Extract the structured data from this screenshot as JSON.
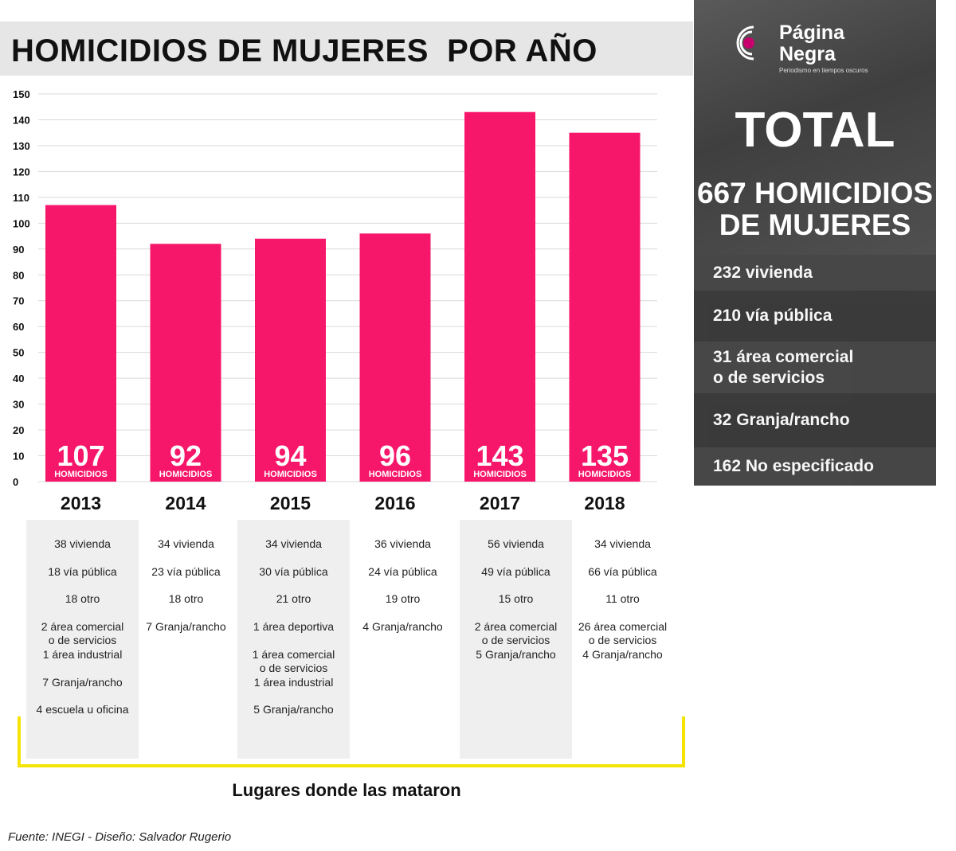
{
  "title": "HOMICIDIOS DE MUJERES  POR AÑO",
  "colors": {
    "bar": "#f7176a",
    "grid": "#d9d9d9",
    "panel": "#474747",
    "bracket": "#f5e400",
    "logo_accent": "#c8006e"
  },
  "chart_data": {
    "type": "bar",
    "categories": [
      "2013",
      "2014",
      "2015",
      "2016",
      "2017",
      "2018"
    ],
    "values": [
      107,
      92,
      94,
      96,
      143,
      135
    ],
    "value_label_suffix": "HOMICIDIOS",
    "yticks": [
      0,
      10,
      20,
      30,
      40,
      50,
      60,
      70,
      80,
      90,
      100,
      110,
      120,
      130,
      140,
      150
    ],
    "ylim": [
      0,
      150
    ],
    "grid": true
  },
  "locations": [
    {
      "year": "2013",
      "items": [
        "38 vivienda",
        "18 vía pública",
        "18 otro",
        "2 área comercial\no de servicios",
        "1 área industrial",
        "7 Granja/rancho",
        "4 escuela u oficina"
      ]
    },
    {
      "year": "2014",
      "items": [
        "34 vivienda",
        "23 vía pública",
        "18 otro",
        "7 Granja/rancho"
      ]
    },
    {
      "year": "2015",
      "items": [
        "34 vivienda",
        "30 vía pública",
        "21 otro",
        "1 área deportiva",
        "1 área comercial\no de servicios",
        "1 área industrial",
        "5 Granja/rancho"
      ]
    },
    {
      "year": "2016",
      "items": [
        "36 vivienda",
        "24 vía pública",
        "19 otro",
        "4 Granja/rancho"
      ]
    },
    {
      "year": "2017",
      "items": [
        "56 vivienda",
        "49 vía pública",
        "15 otro",
        "2 área comercial\no de servicios",
        "5 Granja/rancho"
      ]
    },
    {
      "year": "2018",
      "items": [
        "34 vivienda",
        "66 vía pública",
        "11 otro",
        "26 área comercial\no de servicios",
        "4 Granja/rancho"
      ]
    }
  ],
  "caption": "Lugares donde las mataron",
  "source": "Fuente: INEGI - Diseño: Salvador Rugerio",
  "side": {
    "logo_line1": "Página",
    "logo_line2": "Negra",
    "logo_tagline": "Periodismo en tiempos oscuros",
    "total_label": "TOTAL",
    "total_line1": "667 HOMICIDIOS",
    "total_line2": "DE MUJERES",
    "categories": [
      "232 vivienda",
      "210 vía pública",
      "31 área comercial\no de servicios",
      "32 Granja/rancho",
      "162 No especificado"
    ]
  }
}
